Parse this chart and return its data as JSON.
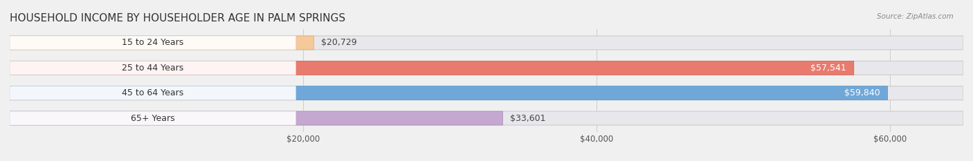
{
  "title": "HOUSEHOLD INCOME BY HOUSEHOLDER AGE IN PALM SPRINGS",
  "source": "Source: ZipAtlas.com",
  "categories": [
    "15 to 24 Years",
    "25 to 44 Years",
    "45 to 64 Years",
    "65+ Years"
  ],
  "values": [
    20729,
    57541,
    59840,
    33601
  ],
  "labels": [
    "$20,729",
    "$57,541",
    "$59,840",
    "$33,601"
  ],
  "bar_colors": [
    "#f5c99a",
    "#e87b6e",
    "#6fa8d8",
    "#c4a8d0"
  ],
  "bar_edge_colors": [
    "#e8a870",
    "#d45a50",
    "#5090c0",
    "#a888b8"
  ],
  "background_color": "#f0f0f0",
  "bar_bg_color": "#e8e8e8",
  "x_min": 0,
  "x_max": 65000,
  "x_ticks": [
    20000,
    40000,
    60000
  ],
  "x_tick_labels": [
    "$20,000",
    "$40,000",
    "$60,000"
  ],
  "title_fontsize": 11,
  "label_fontsize": 9,
  "tick_fontsize": 8.5
}
